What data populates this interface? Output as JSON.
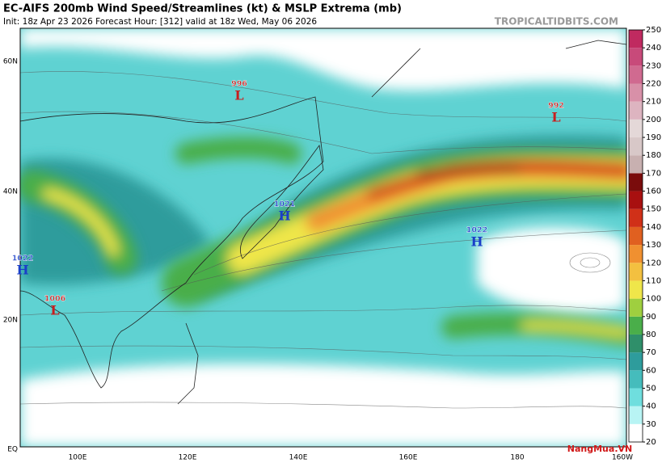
{
  "header": {
    "title": "EC-AIFS 200mb Wind Speed/Streamlines (kt) & MSLP Extrema (mb)",
    "subtitle": "Init: 18z Apr 23 2026   Forecast Hour: [312]   valid at 18z Wed, May 06 2026",
    "source": "TROPICALTIDBITS.COM"
  },
  "map": {
    "lat_labels": [
      "60N",
      "40N",
      "20N",
      "EQ"
    ],
    "lon_labels": [
      "100E",
      "120E",
      "140E",
      "160E",
      "180",
      "160W"
    ]
  },
  "colorbar": {
    "ticks": [
      20,
      30,
      40,
      50,
      60,
      70,
      80,
      90,
      100,
      110,
      120,
      130,
      140,
      150,
      160,
      170,
      180,
      190,
      200,
      210,
      220,
      230,
      240,
      250
    ],
    "colors": [
      "#ffffff",
      "#b8f4f4",
      "#6fdede",
      "#45bcbc",
      "#2e9c9c",
      "#2f8f6a",
      "#4aae4a",
      "#9fcf3f",
      "#efe64a",
      "#f3c040",
      "#f09030",
      "#e06020",
      "#d03018",
      "#a81010",
      "#7a0c0c",
      "#c8b0b0",
      "#d8c8c8",
      "#e4d8d8",
      "#ddb4c0",
      "#d890a8",
      "#d06a90",
      "#c84a7a",
      "#c02a60"
    ]
  },
  "pressure_centers": [
    {
      "value": 996,
      "letter": "L"
    },
    {
      "value": 992,
      "letter": "L"
    },
    {
      "value": 1021,
      "letter": "H"
    },
    {
      "value": 1022,
      "letter": "H"
    },
    {
      "value": 1022,
      "letter": "H"
    },
    {
      "value": 1006,
      "letter": "L"
    }
  ],
  "watermark": "NangMua.VN"
}
